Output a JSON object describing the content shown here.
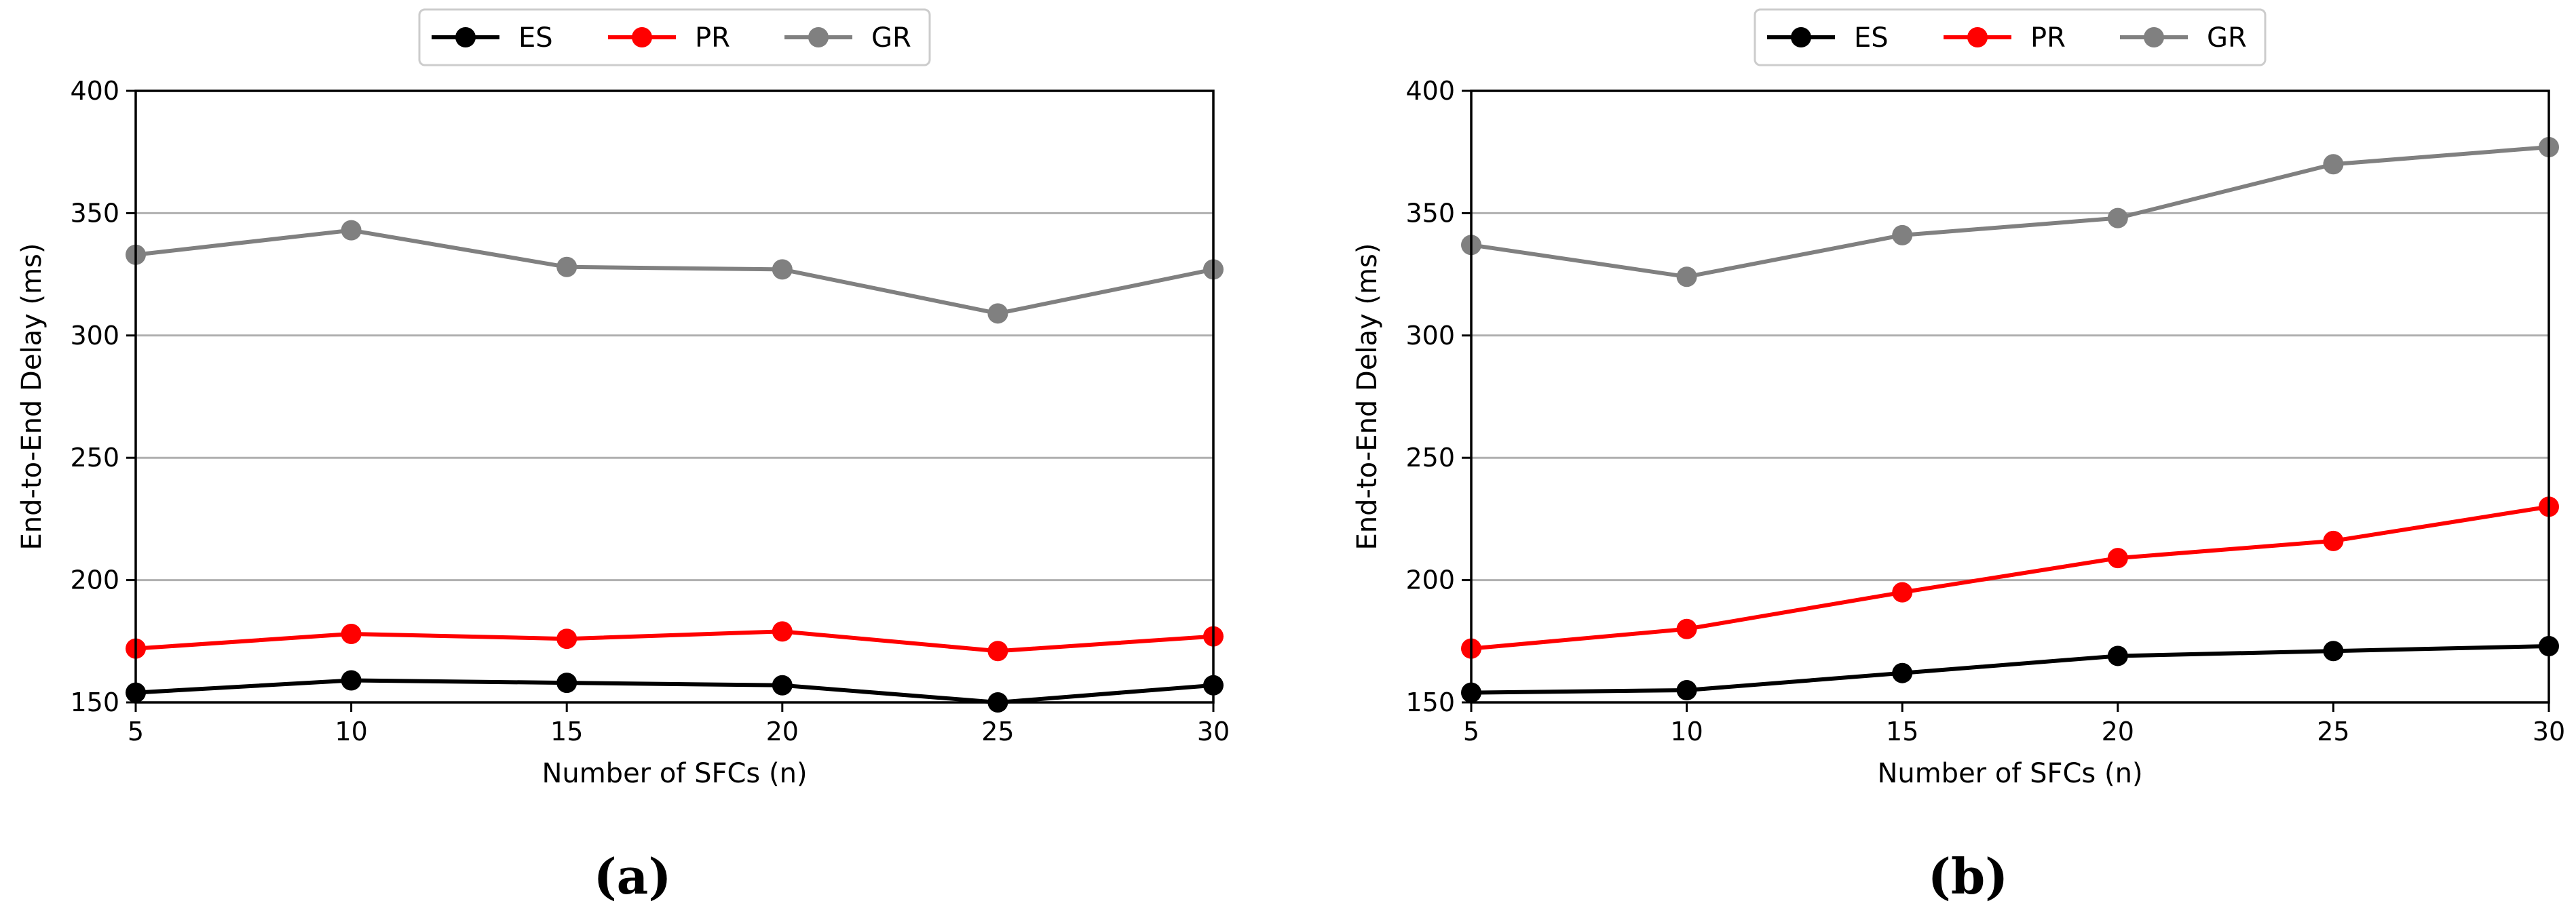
{
  "chart_data": [
    {
      "type": "line",
      "panel_label": "(a)",
      "xlabel": "Number of SFCs (n)",
      "ylabel": "End-to-End Delay (ms)",
      "x": [
        5,
        10,
        15,
        20,
        25,
        30
      ],
      "xlim": [
        5,
        30
      ],
      "ylim": [
        150,
        400
      ],
      "xticks": [
        5,
        10,
        15,
        20,
        25,
        30
      ],
      "yticks": [
        150,
        200,
        250,
        300,
        350,
        400
      ],
      "grid": "horizontal",
      "legend_position": "top-center",
      "series": [
        {
          "name": "ES",
          "color": "#000000",
          "values": [
            154,
            159,
            158,
            157,
            150,
            157
          ]
        },
        {
          "name": "PR",
          "color": "#ff0000",
          "values": [
            172,
            178,
            176,
            179,
            171,
            177
          ]
        },
        {
          "name": "GR",
          "color": "#808080",
          "values": [
            333,
            343,
            328,
            327,
            309,
            327
          ]
        }
      ]
    },
    {
      "type": "line",
      "panel_label": "(b)",
      "xlabel": "Number of SFCs (n)",
      "ylabel": "End-to-End Delay (ms)",
      "x": [
        5,
        10,
        15,
        20,
        25,
        30
      ],
      "xlim": [
        5,
        30
      ],
      "ylim": [
        150,
        400
      ],
      "xticks": [
        5,
        10,
        15,
        20,
        25,
        30
      ],
      "yticks": [
        150,
        200,
        250,
        300,
        350,
        400
      ],
      "grid": "horizontal",
      "legend_position": "top-center",
      "series": [
        {
          "name": "ES",
          "color": "#000000",
          "values": [
            154,
            155,
            162,
            169,
            171,
            173
          ]
        },
        {
          "name": "PR",
          "color": "#ff0000",
          "values": [
            172,
            180,
            195,
            209,
            216,
            230
          ]
        },
        {
          "name": "GR",
          "color": "#808080",
          "values": [
            337,
            324,
            341,
            348,
            370,
            377
          ]
        }
      ]
    }
  ]
}
